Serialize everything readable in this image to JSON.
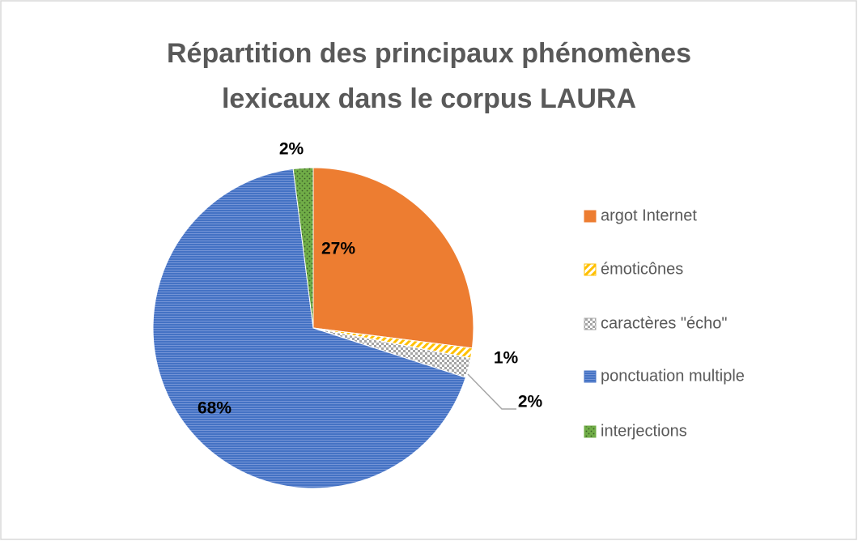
{
  "chart_data": {
    "type": "pie",
    "title": "Répartition des principaux phénomènes lexicaux dans le corpus LAURA",
    "categories": [
      "argot Internet",
      "émoticônes",
      "caractères \"écho\"",
      "ponctuation multiple",
      "interjections"
    ],
    "values": [
      27,
      1,
      2,
      68,
      2
    ],
    "value_labels": [
      "27%",
      "1%",
      "2%",
      "68%",
      "2%"
    ],
    "colors": [
      "#ed7d31",
      "#ffc000",
      "#a5a5a5",
      "#4472c4",
      "#70ad47"
    ],
    "patterns": [
      "solid",
      "stripes",
      "checker",
      "lines",
      "dots"
    ]
  }
}
